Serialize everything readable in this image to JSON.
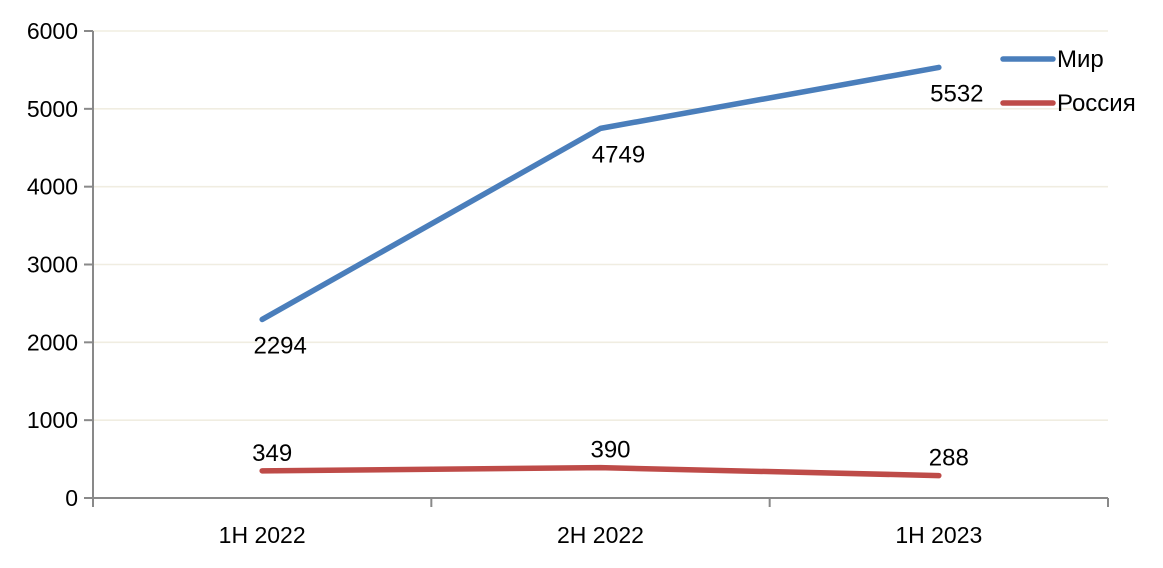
{
  "chart_data": {
    "type": "line",
    "categories": [
      "1H 2022",
      "2H 2022",
      "1H 2023"
    ],
    "series": [
      {
        "name": "Мир",
        "values": [
          2294,
          4749,
          5532
        ],
        "color": "#4A7EBB"
      },
      {
        "name": "Россия",
        "values": [
          349,
          390,
          288
        ],
        "color": "#BE4B48"
      }
    ],
    "data_labels": {
      "Мир": [
        "2294",
        "4749",
        "5532"
      ],
      "Россия": [
        "349",
        "390",
        "288"
      ]
    },
    "y_tick_labels": [
      "0",
      "1000",
      "2000",
      "3000",
      "4000",
      "5000",
      "6000"
    ],
    "title": "",
    "xlabel": "",
    "ylabel": "",
    "ylim": [
      0,
      6000
    ],
    "ytick_step": 1000,
    "grid": true,
    "legend_position": "top-right",
    "colors": {
      "gridline": "#F0EDE1",
      "axis": "#898989",
      "label_text": "#000000"
    }
  }
}
